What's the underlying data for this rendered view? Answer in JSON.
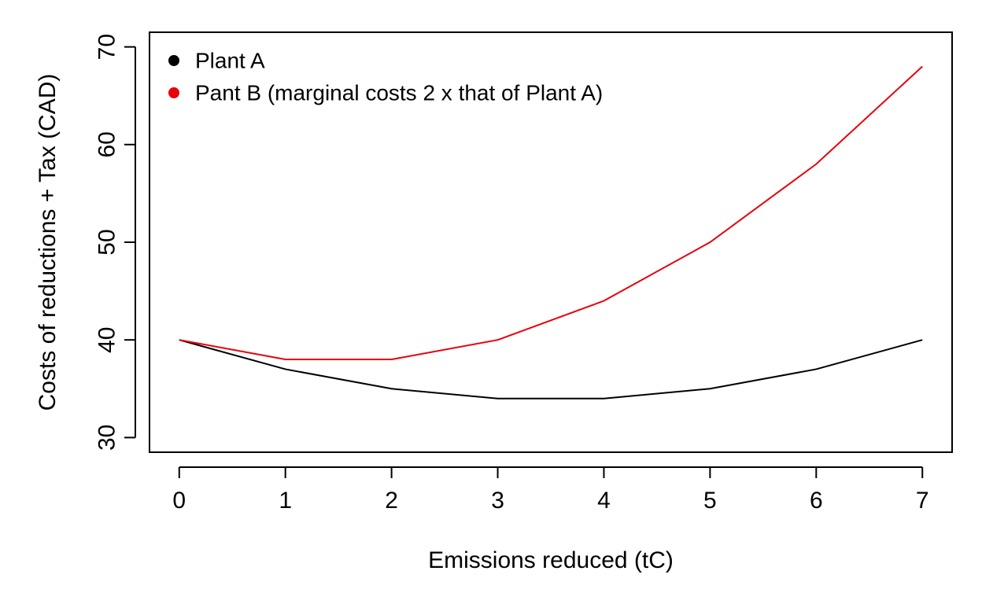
{
  "chart_data": {
    "type": "line",
    "title": "",
    "xlabel": "Emissions reduced (tC)",
    "ylabel": "Costs of reductions + Tax (CAD)",
    "x": [
      0,
      1,
      2,
      3,
      4,
      5,
      6,
      7
    ],
    "xticks": [
      "0",
      "1",
      "2",
      "3",
      "4",
      "5",
      "6",
      "7"
    ],
    "yticks": [
      "30",
      "40",
      "50",
      "60",
      "70"
    ],
    "xlim": [
      -0.28,
      7.28
    ],
    "ylim": [
      28.5,
      71.5
    ],
    "grid": false,
    "legend_position": "top-left",
    "series": [
      {
        "name": "Plant A",
        "color": "#000000",
        "values": [
          40,
          37,
          35,
          34,
          34,
          35,
          37,
          40
        ]
      },
      {
        "name": "Pant B (marginal costs 2 x that of Plant A)",
        "color": "#e8000b",
        "values": [
          40,
          38,
          38,
          40,
          44,
          50,
          58,
          68
        ]
      }
    ]
  }
}
